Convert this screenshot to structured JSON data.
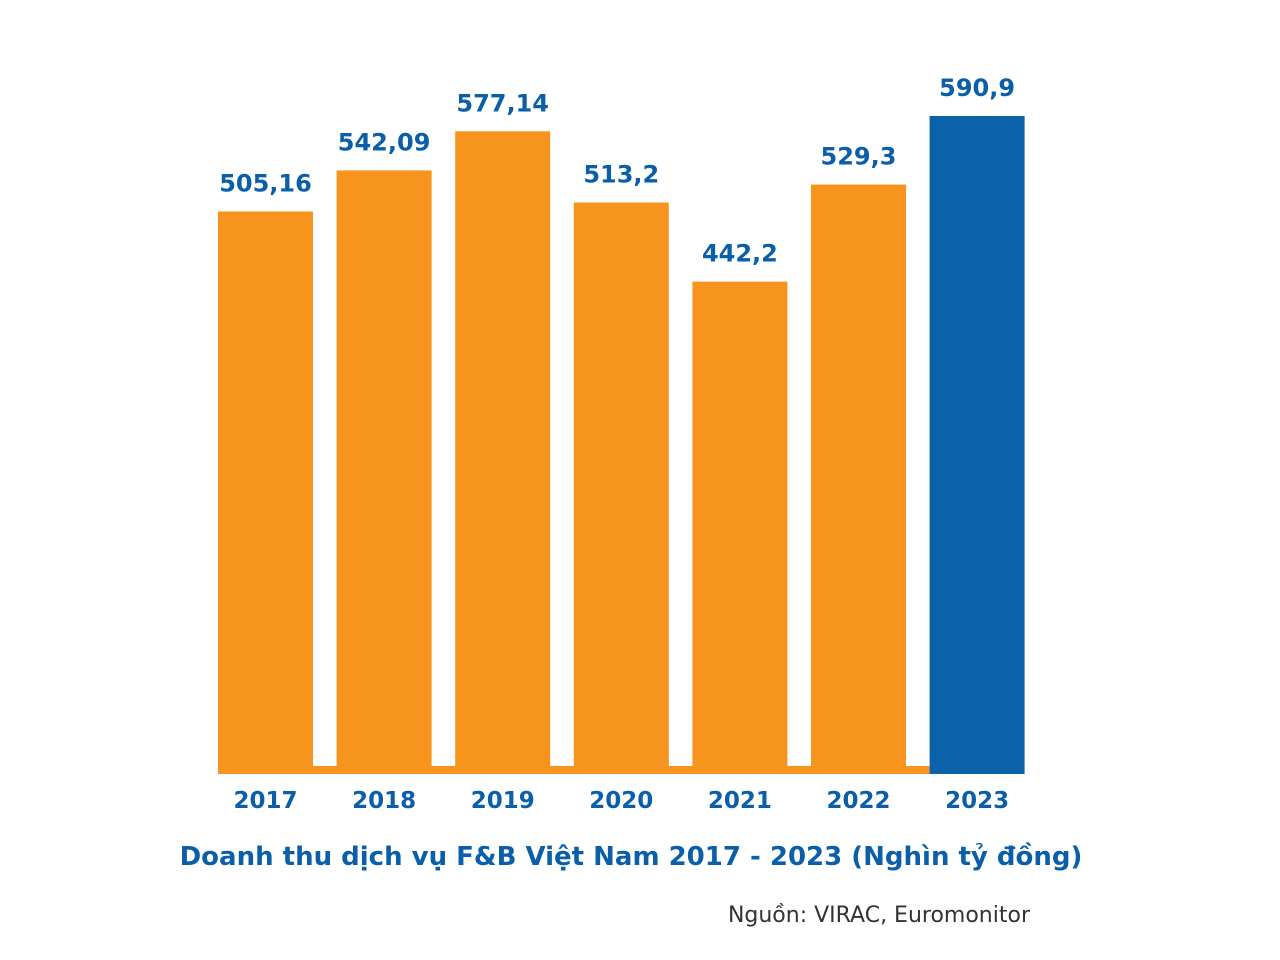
{
  "colors": {
    "bar": "#f7941d",
    "highlight_bar": "#0b62aa",
    "label": "#0b5fa8",
    "tick": "#0b5fa8"
  },
  "chart_data": {
    "type": "bar",
    "categories": [
      "2017",
      "2018",
      "2019",
      "2020",
      "2021",
      "2022",
      "2023"
    ],
    "values": [
      505.16,
      542.09,
      577.14,
      513.2,
      442.2,
      529.3,
      590.9
    ],
    "data_labels": [
      "505,16",
      "542,09",
      "577,14",
      "513,2",
      "442,2",
      "529,3",
      "590,9"
    ],
    "highlight_index": 6,
    "title": "Doanh thu dịch vụ F&B Việt Nam 2017 - 2023 (Nghìn tỷ đồng)",
    "source": "Nguồn: VIRAC, Euromonitor",
    "xlabel": "",
    "ylabel": "",
    "ylim": [
      0,
      590.9
    ],
    "grid": false,
    "legend": "none"
  }
}
